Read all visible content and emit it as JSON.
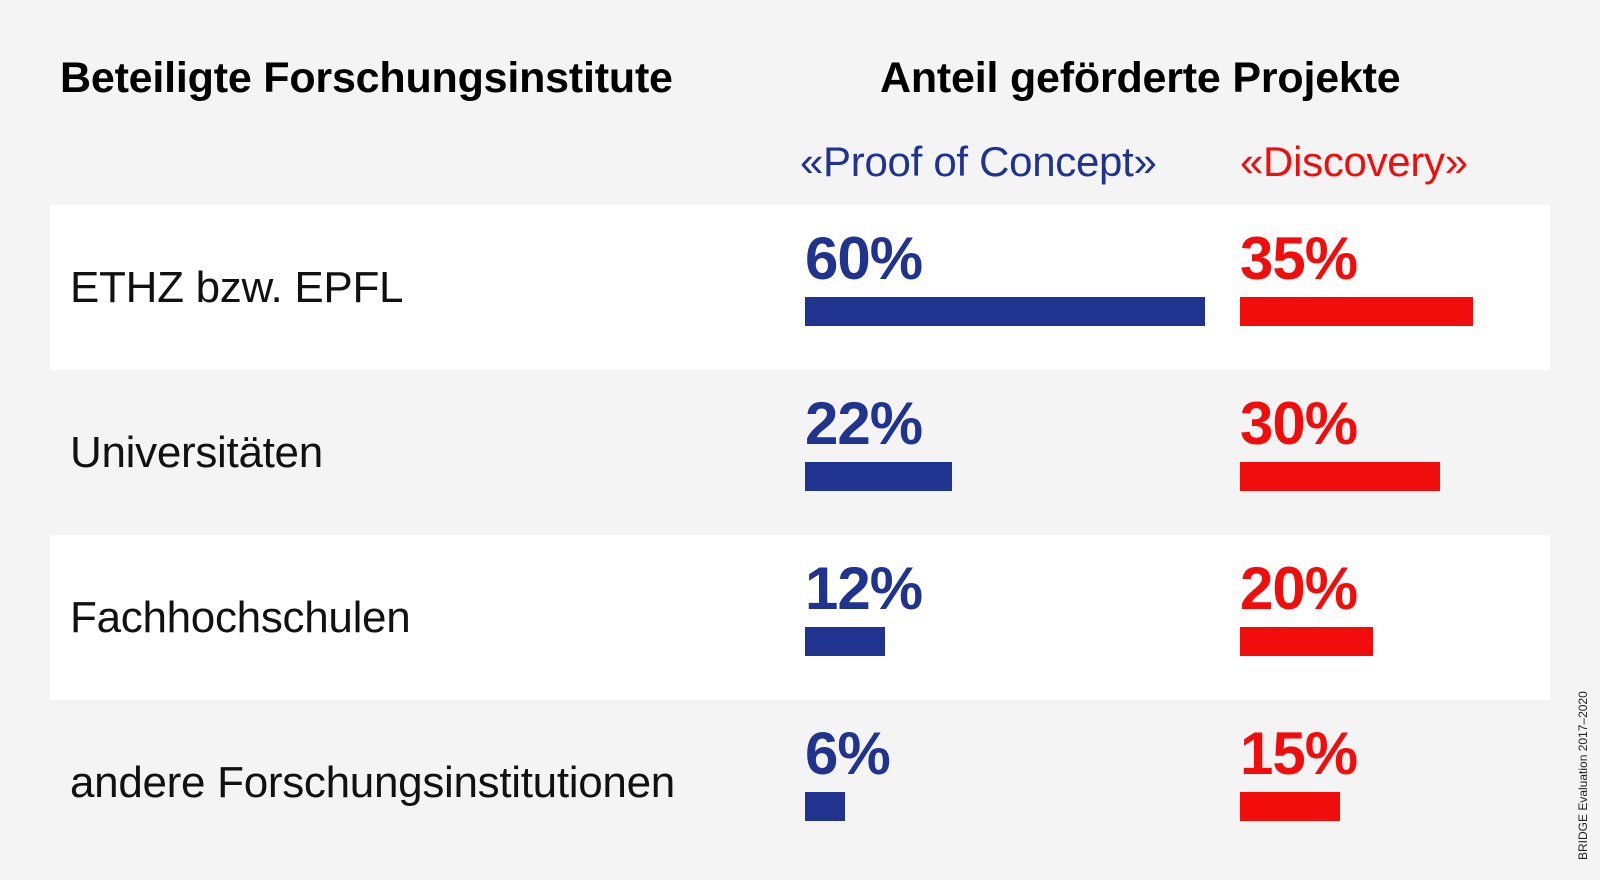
{
  "chart_data": {
    "type": "bar",
    "title": "Anteil geförderte Projekte",
    "category_header": "Beteiligte Forschungsinstitute",
    "categories": [
      "ETHZ bzw. EPFL",
      "Universitäten",
      "Fachhochschulen",
      "andere Forschungsinstitutionen"
    ],
    "series": [
      {
        "name": "«Proof of Concept»",
        "color": "#1f338f",
        "values": [
          60,
          22,
          12,
          6
        ],
        "labels": [
          "60%",
          "22%",
          "12%",
          "6%"
        ]
      },
      {
        "name": "«Discovery»",
        "color": "#f20d0d",
        "values": [
          35,
          30,
          20,
          15
        ],
        "labels": [
          "35%",
          "30%",
          "20%",
          "15%"
        ]
      }
    ],
    "unit": "%",
    "footnote": "BRIDGE Evaluation 2017–2020"
  }
}
